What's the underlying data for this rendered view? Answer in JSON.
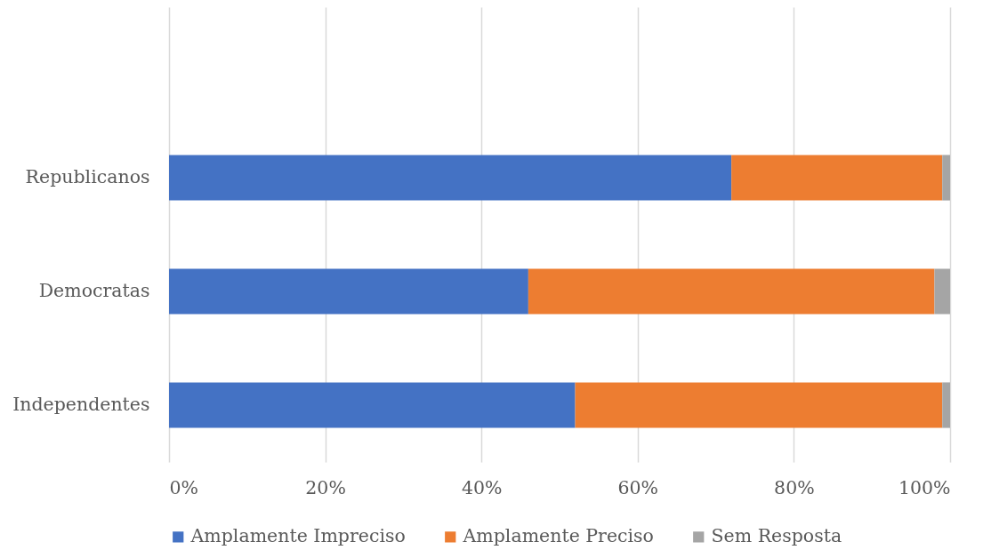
{
  "chart_data": {
    "type": "bar",
    "orientation": "horizontal",
    "stacked": true,
    "categories": [
      "Republicanos",
      "Democratas",
      "Independentes"
    ],
    "series": [
      {
        "name": "Amplamente Impreciso",
        "color": "#4472c4",
        "values": [
          72,
          46,
          52
        ]
      },
      {
        "name": "Amplamente Preciso",
        "color": "#ed7d31",
        "values": [
          27,
          52,
          47
        ]
      },
      {
        "name": "Sem Resposta",
        "color": "#a5a5a5",
        "values": [
          1,
          2,
          1
        ]
      }
    ],
    "xlim": [
      0,
      100
    ],
    "xticks": [
      {
        "value": 0,
        "label": "0%"
      },
      {
        "value": 20,
        "label": "20%"
      },
      {
        "value": 40,
        "label": "40%"
      },
      {
        "value": 60,
        "label": "60%"
      },
      {
        "value": 80,
        "label": "80%"
      },
      {
        "value": 100,
        "label": "100%"
      }
    ],
    "grid": "x",
    "legend": "bottom"
  }
}
